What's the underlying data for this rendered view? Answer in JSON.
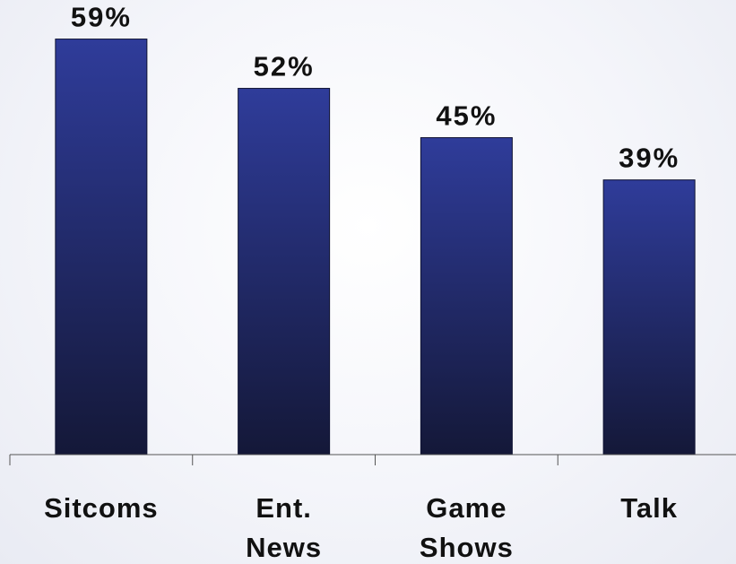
{
  "chart_data": {
    "type": "bar",
    "categories": [
      [
        "Sitcoms"
      ],
      [
        "Ent.",
        "News"
      ],
      [
        "Game",
        "Shows"
      ],
      [
        "Talk"
      ]
    ],
    "values": [
      59,
      52,
      45,
      39
    ],
    "value_labels": [
      "59%",
      "52%",
      "45%",
      "39%"
    ],
    "title": "",
    "xlabel": "",
    "ylabel": "",
    "ylim": [
      0,
      62
    ],
    "grid": false,
    "legend": "none"
  },
  "colors": {
    "bar_top": "#2f3c9a",
    "bar_bottom": "#141838",
    "text": "#111111",
    "axis": "#555555"
  }
}
